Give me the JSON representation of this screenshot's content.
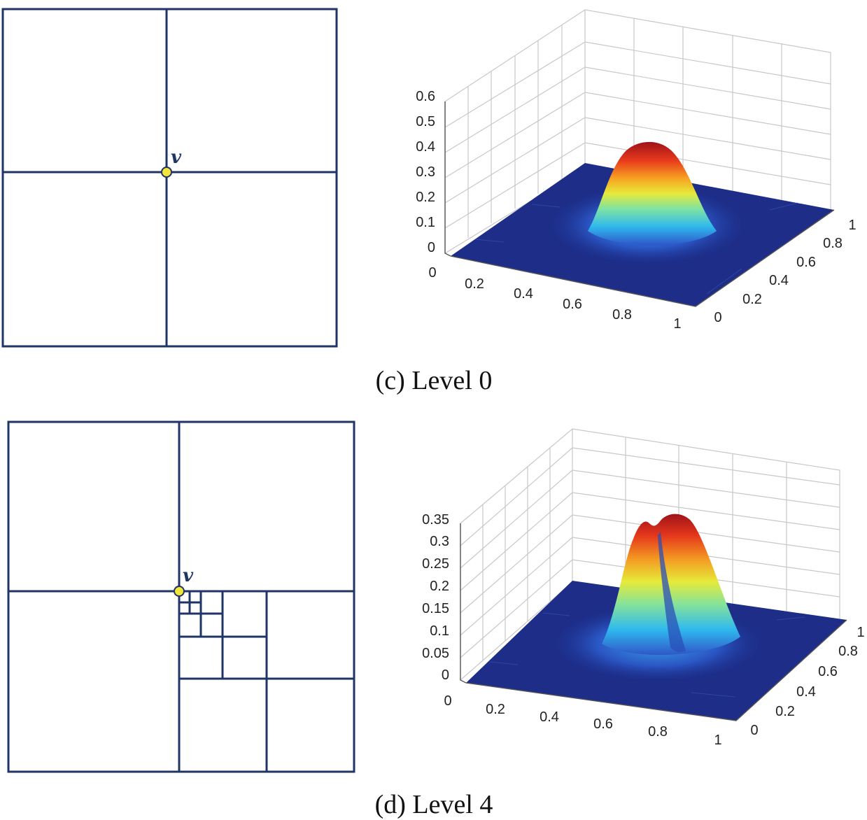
{
  "panels": [
    {
      "caption": "(c) Level 0",
      "vertex_label": "v",
      "z_ticks": [
        "0",
        "0.1",
        "0.2",
        "0.3",
        "0.4",
        "0.5",
        "0.6"
      ],
      "x_ticks": [
        "0",
        "0.2",
        "0.4",
        "0.6",
        "0.8",
        "1"
      ],
      "y_ticks": [
        "0",
        "0.2",
        "0.4",
        "0.6",
        "0.8",
        "1"
      ]
    },
    {
      "caption": "(d) Level 4",
      "vertex_label": "v",
      "z_ticks": [
        "0",
        "0.05",
        "0.1",
        "0.15",
        "0.2",
        "0.25",
        "0.3",
        "0.35"
      ],
      "x_ticks": [
        "0",
        "0.2",
        "0.4",
        "0.6",
        "0.8",
        "1"
      ],
      "y_ticks": [
        "0",
        "0.2",
        "0.4",
        "0.6",
        "0.8",
        "1"
      ]
    }
  ],
  "colors": {
    "grid": "#1f3566",
    "vertex_fill": "#f3e63a",
    "surface_low": "#1a2f8f",
    "surface_high": "#b3121a"
  }
}
